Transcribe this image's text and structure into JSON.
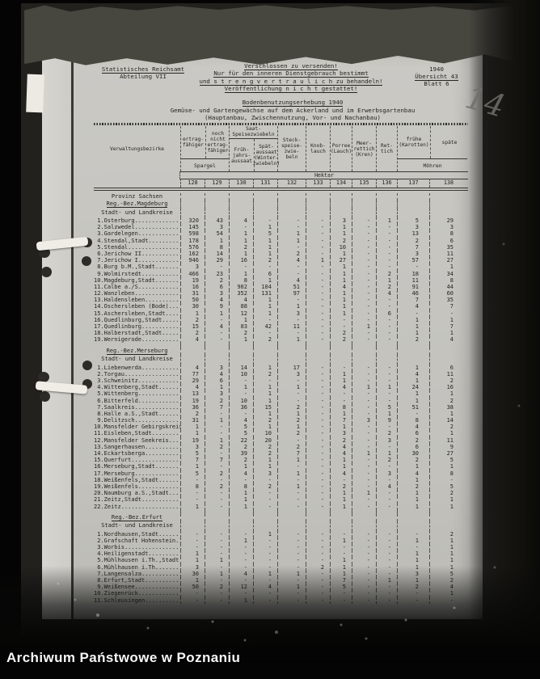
{
  "photo": {
    "watermark": "Archiwum Państwowe w Poznaniu",
    "handwritten_number": "14"
  },
  "document": {
    "agency_line1": "Statistisches Reichsamt",
    "agency_line2": "Abteilung VII",
    "notice_line1": "Verschlossen zu versenden!",
    "notice_line2": "Nur für den inneren Dienstgebrauch bestimmt",
    "notice_line3": "und s t r e n g  v e r t r a u l i c h  zu behandeln!",
    "notice_line4": "Veröffentlichung  n i c h t  gestattet!",
    "ref_year": "1940",
    "ref_uebersicht": "Übersicht 43",
    "ref_blatt": "Blatt 6",
    "title": "Bodenbenutzungserhebung 1940",
    "subtitle": "Gemüse- und Gartengewächse auf dem Ackerland und im Erwerbsgartenbau",
    "subtitle2": "(Hauptanbau, Zwischennutzung, Vor- und Nachanbau)"
  },
  "table": {
    "header": {
      "row_header": "Verwaltungsbezirke",
      "unit": "Hektar",
      "spargel": {
        "label": "Spargel",
        "cols": [
          {
            "num": "128",
            "label": "ertrag-\nfähiger"
          },
          {
            "num": "129",
            "label": "noch\nnicht\nertrag-\nfähiger"
          }
        ]
      },
      "saat": {
        "label": "Saat-\nSpeisezwiebeln",
        "cols": [
          {
            "num": "130",
            "label": "Früh-\njahrs-\naussaat"
          },
          {
            "num": "131",
            "label": "Spät-\naussaat\n(Winter-\nzwiebeln)"
          }
        ]
      },
      "singles": [
        {
          "num": "132",
          "label": "Steck-\nspeise-\nzwie-\nbeln"
        },
        {
          "num": "133",
          "label": "Knob-\nlauch"
        },
        {
          "num": "134",
          "label": "Porree\n(Lauch)"
        },
        {
          "num": "135",
          "label": "Meer-\nrettich\n(Kren)"
        },
        {
          "num": "136",
          "label": "Ret-\ntich"
        }
      ],
      "moehren": {
        "label": "Möhren",
        "cols": [
          {
            "num": "137",
            "label": "frühe\n(Karotten)"
          },
          {
            "num": "138",
            "label": "späte"
          }
        ]
      },
      "col_numbers": [
        "128",
        "129",
        "130",
        "131",
        "132",
        "133",
        "134",
        "135",
        "136",
        "137",
        "138"
      ]
    },
    "sections": [
      {
        "province": "Provinz Sachsen",
        "bezirk": "Reg.-Bez.Magdeburg",
        "subheader": "Stadt- und Landkreise",
        "rows": [
          {
            "name": " 1.Osterburg",
            "values": [
              "320",
              "43",
              "4",
              "-",
              "-",
              "-",
              "3",
              "-",
              "1",
              "5",
              "29"
            ]
          },
          {
            "name": " 2.Salzwedel",
            "values": [
              "145",
              "3",
              "-",
              "1",
              "-",
              "-",
              "1",
              "-",
              "-",
              "3",
              "3"
            ]
          },
          {
            "name": " 3.Gardelegen",
            "values": [
              "598",
              "54",
              "1",
              "5",
              "1",
              "-",
              "1",
              "-",
              "-",
              "13",
              "8"
            ]
          },
          {
            "name": " 4.Stendal,Stadt",
            "values": [
              "178",
              "1",
              "1",
              "1",
              "1",
              "-",
              "2",
              "-",
              "-",
              "2",
              "6"
            ]
          },
          {
            "name": " 5.Stendal",
            "values": [
              "576",
              "8",
              "2",
              "1",
              "-",
              "-",
              "10",
              "-",
              "-",
              "7",
              "35"
            ]
          },
          {
            "name": " 6.Jerichow II",
            "values": [
              "162",
              "14",
              "1",
              "1",
              "2",
              "-",
              "1",
              "-",
              "-",
              "3",
              "11"
            ]
          },
          {
            "name": " 7.Jerichow I",
            "values": [
              "946",
              "29",
              "16",
              "2",
              "4",
              "1",
              "27",
              "-",
              "-",
              "57",
              "27"
            ]
          },
          {
            "name": " 8.Burg b.M.,Stadt",
            "values": [
              "3",
              "-",
              "-",
              "-",
              "-",
              "-",
              "1",
              "-",
              "-",
              "-",
              "1"
            ]
          },
          {
            "name": " 9.Wolmirstedt",
            "values": [
              "466",
              "23",
              "1",
              "6",
              "-",
              "-",
              "1",
              "-",
              "2",
              "18",
              "34"
            ]
          },
          {
            "name": "10.Magdeburg,Stadt",
            "values": [
              "19",
              "2",
              "8",
              "1",
              "4",
              "-",
              "1",
              "-",
              "1",
              "11",
              "8"
            ]
          },
          {
            "name": "11.Calbe a./S.",
            "values": [
              "16",
              "6",
              "902",
              "104",
              "51",
              "-",
              "4",
              "-",
              "2",
              "91",
              "44"
            ]
          },
          {
            "name": "12.Wanzleben",
            "values": [
              "31",
              "3",
              "352",
              "131",
              "97",
              "-",
              "1",
              "-",
              "4",
              "46",
              "60"
            ]
          },
          {
            "name": "13.Haldensleben",
            "values": [
              "50",
              "4",
              "4",
              "1",
              "-",
              "-",
              "1",
              "-",
              "-",
              "7",
              "35"
            ]
          },
          {
            "name": "14.Oschersleben (Bode)",
            "values": [
              "30",
              "9",
              "88",
              "1",
              "1",
              "-",
              "1",
              "-",
              "-",
              "4",
              "7"
            ]
          },
          {
            "name": "15.Aschersleben,Stadt",
            "values": [
              "1",
              "1",
              "12",
              "1",
              "3",
              "-",
              "1",
              "-",
              "6",
              "-",
              "-"
            ]
          },
          {
            "name": "16.Quedlinburg,Stadt",
            "values": [
              "2",
              "-",
              "1",
              "-",
              "-",
              "-",
              "-",
              "-",
              "-",
              "1",
              "1"
            ]
          },
          {
            "name": "17.Quedlinburg",
            "values": [
              "15",
              "4",
              "83",
              "42",
              "11",
              "-",
              "-",
              "1",
              "-",
              "1",
              "7"
            ]
          },
          {
            "name": "18.Halberstadt,Stadt",
            "values": [
              "2",
              "-",
              "2",
              "-",
              "-",
              "-",
              "2",
              "-",
              "-",
              "1",
              "1"
            ]
          },
          {
            "name": "19.Wernigerode",
            "values": [
              "4",
              "-",
              "1",
              "2",
              "1",
              "-",
              "2",
              "-",
              "-",
              "2",
              "4"
            ]
          }
        ]
      },
      {
        "bezirk": "Reg.-Bez.Merseburg",
        "subheader": "Stadt- und Landkreise",
        "rows": [
          {
            "name": " 1.Liebenwerda",
            "values": [
              "4",
              "3",
              "14",
              "1",
              "17",
              "-",
              "-",
              "-",
              "-",
              "1",
              "6"
            ]
          },
          {
            "name": " 2.Torgau",
            "values": [
              "77",
              "4",
              "10",
              "2",
              "3",
              "-",
              "1",
              "-",
              "-",
              "4",
              "11"
            ]
          },
          {
            "name": " 3.Schweinitz",
            "values": [
              "29",
              "6",
              "-",
              "-",
              "-",
              "-",
              "1",
              "-",
              "-",
              "1",
              "2"
            ]
          },
          {
            "name": " 4.Wittenberg,Stadt",
            "values": [
              "4",
              "1",
              "1",
              "1",
              "1",
              "-",
              "4",
              "1",
              "1",
              "24",
              "16"
            ]
          },
          {
            "name": " 5.Wittenberg",
            "values": [
              "13",
              "3",
              "-",
              "1",
              "-",
              "-",
              "-",
              "-",
              "-",
              "1",
              "1"
            ]
          },
          {
            "name": " 6.Bitterfeld",
            "values": [
              "19",
              "2",
              "10",
              "1",
              "-",
              "-",
              "-",
              "-",
              "-",
              "1",
              "2"
            ]
          },
          {
            "name": " 7.Saalkreis",
            "values": [
              "36",
              "7",
              "36",
              "15",
              "2",
              "-",
              "8",
              "-",
              "5",
              "51",
              "38"
            ]
          },
          {
            "name": " 8.Halle a.S.,Stadt",
            "values": [
              "2",
              "-",
              "-",
              "1",
              "1",
              "-",
              "1",
              "-",
              "1",
              "-",
              "1"
            ]
          },
          {
            "name": " 9.Delitzsch",
            "values": [
              "31",
              "1",
              "4",
              "2",
              "2",
              "-",
              "7",
              "3",
              "9",
              "8",
              "14"
            ]
          },
          {
            "name": "10.Mansfelder Gebirgskreis",
            "values": [
              "1",
              "-",
              "5",
              "1",
              "1",
              "-",
              "1",
              "-",
              "-",
              "4",
              "2"
            ]
          },
          {
            "name": "11.Eisleben,Stadt",
            "values": [
              "1",
              "-",
              "5",
              "10",
              "2",
              "-",
              "3",
              "-",
              "2",
              "6",
              "1"
            ]
          },
          {
            "name": "12.Mansfelder Seekreis",
            "values": [
              "19",
              "1",
              "22",
              "20",
              "-",
              "-",
              "2",
              "-",
              "3",
              "2",
              "11"
            ]
          },
          {
            "name": "13.Sangerhausen",
            "values": [
              "3",
              "2",
              "2",
              "2",
              "2",
              "-",
              "4",
              "-",
              "-",
              "6",
              "9"
            ]
          },
          {
            "name": "14.Eckartsberga",
            "values": [
              "5",
              "-",
              "39",
              "2",
              "7",
              "-",
              "4",
              "1",
              "1",
              "30",
              "27"
            ]
          },
          {
            "name": "15.Querfurt",
            "values": [
              "7",
              "7",
              "2",
              "1",
              "1",
              "-",
              "1",
              "-",
              "2",
              "2",
              "5"
            ]
          },
          {
            "name": "16.Merseburg,Stadt",
            "values": [
              "1",
              "-",
              "1",
              "1",
              "-",
              "-",
              "1",
              "-",
              "-",
              "1",
              "1"
            ]
          },
          {
            "name": "17.Merseburg",
            "values": [
              "5",
              "2",
              "4",
              "3",
              "1",
              "-",
              "4",
              "-",
              "3",
              "4",
              "8"
            ]
          },
          {
            "name": "18.Weißenfels,Stadt",
            "values": [
              "-",
              "-",
              "-",
              "-",
              "-",
              "-",
              "-",
              "-",
              "-",
              "1",
              "-"
            ]
          },
          {
            "name": "19.Weißenfels",
            "values": [
              "8",
              "2",
              "8",
              "2",
              "1",
              "-",
              "2",
              "-",
              "4",
              "2",
              "5"
            ]
          },
          {
            "name": "20.Naumburg a.S.,Stadt",
            "values": [
              "-",
              "-",
              "1",
              "-",
              "-",
              "-",
              "1",
              "1",
              "-",
              "1",
              "2"
            ]
          },
          {
            "name": "21.Zeitz,Stadt",
            "values": [
              "-",
              "-",
              "1",
              "-",
              "-",
              "-",
              "1",
              "-",
              "-",
              "1",
              "1"
            ]
          },
          {
            "name": "22.Zeitz",
            "values": [
              "1",
              "-",
              "1",
              "-",
              "-",
              "-",
              "1",
              "-",
              "-",
              "1",
              "1"
            ]
          }
        ]
      },
      {
        "bezirk": "Reg.-Bez.Erfurt",
        "subheader": "Stadt- und Landkreise",
        "rows": [
          {
            "name": " 1.Nordhausen,Stadt",
            "values": [
              "-",
              "-",
              "-",
              "1",
              "-",
              "-",
              "-",
              "-",
              "-",
              "-",
              "2"
            ]
          },
          {
            "name": " 2.Grafschaft Hohenstein",
            "values": [
              "-",
              "-",
              "1",
              "-",
              "-",
              "-",
              "1",
              "-",
              "-",
              "1",
              "1"
            ]
          },
          {
            "name": " 3.Worbis",
            "values": [
              "-",
              "-",
              "-",
              "-",
              "-",
              "-",
              "-",
              "-",
              "-",
              "-",
              "1"
            ]
          },
          {
            "name": " 4.Heiligenstadt",
            "values": [
              "1",
              "-",
              "-",
              "-",
              "-",
              "-",
              "-",
              "-",
              "-",
              "1",
              "1"
            ]
          },
          {
            "name": " 5.Mühlhausen i.Th.,Stadt",
            "values": [
              "1",
              "1",
              "-",
              "-",
              "-",
              "-",
              "1",
              "-",
              "-",
              "1",
              "1"
            ]
          },
          {
            "name": " 6.Mühlhausen i.Th.",
            "values": [
              "3",
              "-",
              "-",
              "-",
              "-",
              "2",
              "1",
              "-",
              "-",
              "1",
              "1"
            ]
          },
          {
            "name": " 7.Langensalza",
            "values": [
              "30",
              "1",
              "4",
              "1",
              "1",
              "-",
              "1",
              "-",
              "-",
              "3",
              "5"
            ]
          },
          {
            "name": " 8.Erfurt,Stadt",
            "values": [
              "1",
              "-",
              "-",
              "-",
              "-",
              "-",
              "7",
              "-",
              "1",
              "1",
              "2"
            ]
          },
          {
            "name": " 9.Weißensee",
            "values": [
              "50",
              "2",
              "12",
              "4",
              "1",
              "-",
              "5",
              "-",
              "-",
              "2",
              "4"
            ]
          },
          {
            "name": "10.Ziegenrück",
            "values": [
              "-",
              "-",
              "-",
              "-",
              "-",
              "-",
              "-",
              "-",
              "-",
              "-",
              "1"
            ]
          },
          {
            "name": "11.Schleusingen",
            "values": [
              "-",
              "-",
              "1",
              "-",
              "-",
              "-",
              "-",
              "-",
              "-",
              "-",
              "-"
            ]
          }
        ]
      }
    ]
  }
}
